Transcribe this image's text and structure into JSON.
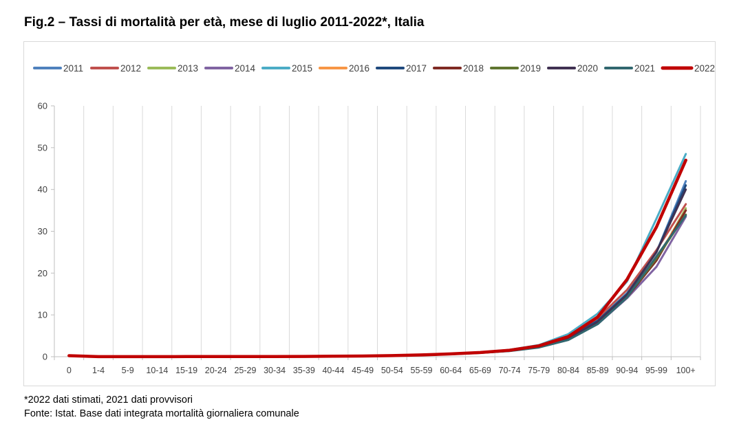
{
  "title": "Fig.2 – Tassi di mortalità per età, mese di luglio 2011-2022*, Italia",
  "notes": {
    "line1": "*2022 dati stimati, 2021 dati provvisori",
    "line2": "Fonte: Istat. Base dati integrata mortalità giornaliera comunale"
  },
  "chart_data": {
    "type": "line",
    "title": "Fig.2 – Tassi di mortalità per età, mese di luglio 2011-2022*, Italia",
    "xlabel": "",
    "ylabel": "",
    "ylim": [
      0,
      60
    ],
    "yticks": [
      0,
      10,
      20,
      30,
      40,
      50,
      60
    ],
    "grid": "vertical",
    "legend_position": "top",
    "categories": [
      "0",
      "1-4",
      "5-9",
      "10-14",
      "15-19",
      "20-24",
      "25-29",
      "30-34",
      "35-39",
      "40-44",
      "45-49",
      "50-54",
      "55-59",
      "60-64",
      "65-69",
      "70-74",
      "75-79",
      "80-84",
      "85-89",
      "90-94",
      "95-99",
      "100+"
    ],
    "series": [
      {
        "name": "2011",
        "color": "#4f81bd",
        "values": [
          0.25,
          0.02,
          0.01,
          0.01,
          0.03,
          0.04,
          0.04,
          0.05,
          0.07,
          0.11,
          0.17,
          0.27,
          0.42,
          0.66,
          0.98,
          1.5,
          2.5,
          4.5,
          8.6,
          15.2,
          25.0,
          42.0
        ]
      },
      {
        "name": "2012",
        "color": "#c0504d",
        "values": [
          0.25,
          0.02,
          0.01,
          0.01,
          0.03,
          0.04,
          0.04,
          0.05,
          0.07,
          0.11,
          0.17,
          0.27,
          0.42,
          0.67,
          1.0,
          1.55,
          2.6,
          4.8,
          9.2,
          16.0,
          25.5,
          36.5
        ]
      },
      {
        "name": "2013",
        "color": "#9bbb59",
        "values": [
          0.24,
          0.02,
          0.01,
          0.01,
          0.03,
          0.04,
          0.04,
          0.05,
          0.07,
          0.11,
          0.17,
          0.26,
          0.41,
          0.64,
          0.96,
          1.45,
          2.4,
          4.3,
          8.2,
          14.5,
          23.0,
          35.5
        ]
      },
      {
        "name": "2014",
        "color": "#8064a2",
        "values": [
          0.24,
          0.02,
          0.01,
          0.01,
          0.03,
          0.04,
          0.04,
          0.05,
          0.07,
          0.1,
          0.16,
          0.26,
          0.4,
          0.62,
          0.93,
          1.4,
          2.3,
          4.1,
          7.8,
          14.0,
          21.5,
          33.5
        ]
      },
      {
        "name": "2015",
        "color": "#4bacc6",
        "values": [
          0.25,
          0.02,
          0.01,
          0.01,
          0.03,
          0.04,
          0.04,
          0.05,
          0.07,
          0.11,
          0.18,
          0.28,
          0.44,
          0.7,
          1.05,
          1.65,
          2.8,
          5.4,
          10.3,
          18.0,
          33.0,
          48.5
        ]
      },
      {
        "name": "2016",
        "color": "#f79646",
        "values": [
          0.24,
          0.02,
          0.01,
          0.01,
          0.03,
          0.04,
          0.04,
          0.05,
          0.07,
          0.1,
          0.16,
          0.26,
          0.4,
          0.63,
          0.94,
          1.42,
          2.35,
          4.2,
          8.0,
          14.3,
          23.5,
          35.0
        ]
      },
      {
        "name": "2017",
        "color": "#1f497d",
        "values": [
          0.24,
          0.02,
          0.01,
          0.01,
          0.03,
          0.04,
          0.04,
          0.05,
          0.07,
          0.1,
          0.17,
          0.26,
          0.41,
          0.65,
          0.97,
          1.48,
          2.45,
          4.5,
          8.6,
          15.0,
          25.0,
          41.0
        ]
      },
      {
        "name": "2018",
        "color": "#7f2a23",
        "values": [
          0.24,
          0.02,
          0.01,
          0.01,
          0.03,
          0.04,
          0.04,
          0.05,
          0.07,
          0.1,
          0.16,
          0.25,
          0.39,
          0.62,
          0.93,
          1.4,
          2.3,
          4.1,
          7.9,
          14.2,
          23.0,
          35.0
        ]
      },
      {
        "name": "2019",
        "color": "#5f7530",
        "values": [
          0.23,
          0.02,
          0.01,
          0.01,
          0.03,
          0.04,
          0.04,
          0.05,
          0.07,
          0.1,
          0.16,
          0.25,
          0.39,
          0.61,
          0.92,
          1.4,
          2.3,
          4.1,
          8.0,
          14.3,
          23.5,
          34.0
        ]
      },
      {
        "name": "2020",
        "color": "#403152",
        "values": [
          0.22,
          0.02,
          0.01,
          0.01,
          0.03,
          0.04,
          0.04,
          0.05,
          0.07,
          0.1,
          0.16,
          0.25,
          0.39,
          0.62,
          0.94,
          1.42,
          2.35,
          4.3,
          8.3,
          14.8,
          25.0,
          40.0
        ]
      },
      {
        "name": "2021",
        "color": "#31676f",
        "values": [
          0.22,
          0.02,
          0.01,
          0.01,
          0.03,
          0.04,
          0.04,
          0.05,
          0.07,
          0.1,
          0.16,
          0.25,
          0.39,
          0.6,
          0.9,
          1.35,
          2.2,
          4.0,
          7.8,
          14.2,
          24.0,
          33.8
        ]
      },
      {
        "name": "2022",
        "color": "#c00000",
        "values": [
          0.24,
          0.02,
          0.01,
          0.01,
          0.03,
          0.04,
          0.04,
          0.05,
          0.07,
          0.11,
          0.17,
          0.27,
          0.42,
          0.67,
          1.0,
          1.55,
          2.6,
          4.8,
          9.5,
          18.5,
          31.0,
          47.0
        ]
      }
    ]
  }
}
